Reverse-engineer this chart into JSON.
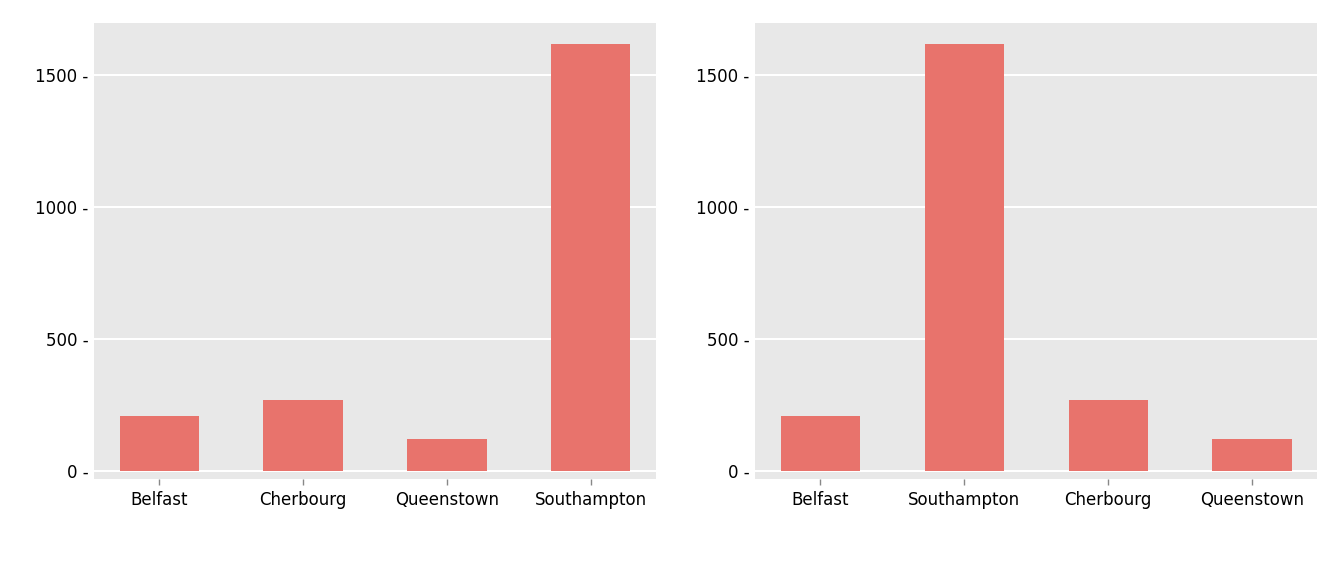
{
  "left_categories": [
    "Belfast",
    "Cherbourg",
    "Queenstown",
    "Southampton"
  ],
  "right_categories": [
    "Belfast",
    "Southampton",
    "Cherbourg",
    "Queenstown"
  ],
  "values": {
    "Belfast": 209,
    "Cherbourg": 270,
    "Queenstown": 123,
    "Southampton": 1620
  },
  "bar_color": "#e8736c",
  "plot_bg_color": "#e8e8e8",
  "figure_bg": "#ffffff",
  "yticks": [
    0,
    500,
    1000,
    1500
  ],
  "ylim": [
    -30,
    1700
  ],
  "bar_width": 0.55,
  "tick_fontsize": 12,
  "label_fontsize": 12,
  "grid_color": "#ffffff",
  "grid_linewidth": 1.5
}
